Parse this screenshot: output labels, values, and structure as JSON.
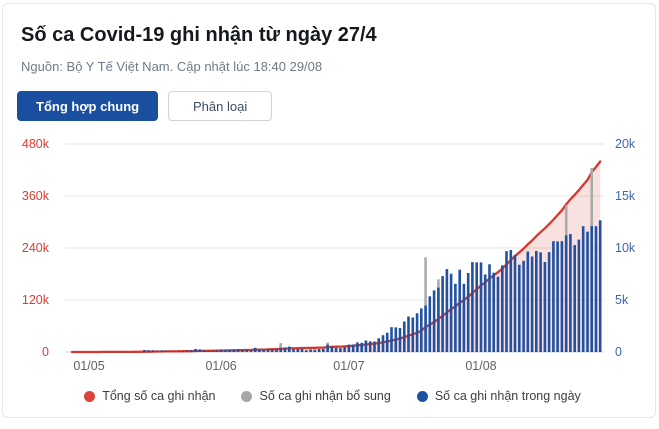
{
  "card": {
    "title": "Số ca Covid-19 ghi nhận từ ngày 27/4",
    "subtitle": "Nguồn: Bộ Y Tế Việt Nam. Cập nhật lúc 18:40 29/08",
    "tabs": [
      {
        "label": "Tổng hợp chung",
        "active": true
      },
      {
        "label": "Phân loại",
        "active": false
      }
    ]
  },
  "colors": {
    "active_tab": "#1a4f9f",
    "title_text": "#15181d",
    "subtitle_text": "#6f7a87",
    "left_axis_red": "#e03a31",
    "right_axis_blue": "#3c67b3",
    "x_axis_gray": "#5f6368",
    "daily_bar_blue": "#2151a0",
    "bonus_bar_gray": "#ababab",
    "cumulative_line_red": "#d5372e",
    "cumulative_area_pink": "rgba(219,68,55,0.16)",
    "gridline": "#e6e6e6",
    "baseline": "#c9cfda"
  },
  "chart_data": {
    "type": "bar",
    "subtype": "combo: daily bars on right axis + cumulative line with area on left axis",
    "title": "Số ca Covid-19 ghi nhận từ ngày 27/4",
    "x_start_label": "27/04",
    "x_end_label": "29/08",
    "num_days": 125,
    "x_tick_labels": [
      "01/05",
      "01/06",
      "01/07",
      "01/08"
    ],
    "x_tick_day_indices": [
      4,
      35,
      65,
      96
    ],
    "y_left": {
      "ticks_top_to_bottom": [
        "480k",
        "360k",
        "240k",
        "120k",
        "0"
      ],
      "max": 480000
    },
    "y_right": {
      "ticks_top_to_bottom": [
        "20k",
        "15k",
        "10k",
        "5k",
        "0"
      ],
      "max": 20000
    },
    "grid": true,
    "legend_position": "bottom",
    "series": [
      {
        "name": "Số ca ghi nhận trong ngày",
        "kind": "bar",
        "axis": "right",
        "color": "#2151a0",
        "values": [
          5,
          8,
          9,
          14,
          14,
          20,
          19,
          30,
          26,
          25,
          46,
          34,
          30,
          31,
          28,
          33,
          35,
          189,
          169,
          170,
          116,
          155,
          111,
          78,
          57,
          73,
          85,
          131,
          187,
          287,
          254,
          173,
          87,
          143,
          153,
          251,
          241,
          220,
          224,
          247,
          216,
          211,
          175,
          407,
          219,
          196,
          261,
          297,
          272,
          402,
          423,
          515,
          264,
          308,
          311,
          175,
          248,
          220,
          285,
          305,
          714,
          518,
          391,
          372,
          450,
          713,
          721,
          922,
          887,
          1102,
          1029,
          1007,
          1314,
          1616,
          1853,
          2383,
          2367,
          2301,
          2934,
          3416,
          3321,
          3718,
          4195,
          4461,
          5357,
          5926,
          6194,
          7295,
          7968,
          7531,
          6559,
          7913,
          6559,
          7594,
          8649,
          8620,
          8620,
          7455,
          8429,
          7623,
          7244,
          8324,
          9690,
          9810,
          9340,
          8390,
          8766,
          9667,
          9180,
          9716,
          9580,
          8652,
          9605,
          10654,
          10639,
          10657,
          11214,
          11346,
          10280,
          10811,
          12096,
          11575,
          12103,
          12097,
          12663
        ]
      },
      {
        "name": "Số ca ghi nhận bổ sung",
        "kind": "bar-stacked-on-daily",
        "axis": "right",
        "color": "#ababab",
        "values_by_day_index": {
          "49": 450,
          "60": 200,
          "83": 4640,
          "86": 800,
          "116": 2900,
          "122": 5600
        }
      },
      {
        "name": "Tổng số ca ghi nhận",
        "kind": "line-area",
        "axis": "left",
        "color": "#d5372e",
        "definition": "cumulative sum of daily + bổ sung, reaching ~440k on 29/08"
      }
    ]
  },
  "legend": {
    "items": [
      {
        "label": "Tổng số ca ghi nhận",
        "color": "#d9453d"
      },
      {
        "label": "Số ca ghi nhận bổ sung",
        "color": "#a6a6a6"
      },
      {
        "label": "Số ca ghi nhận trong ngày",
        "color": "#1a53a1"
      }
    ]
  }
}
